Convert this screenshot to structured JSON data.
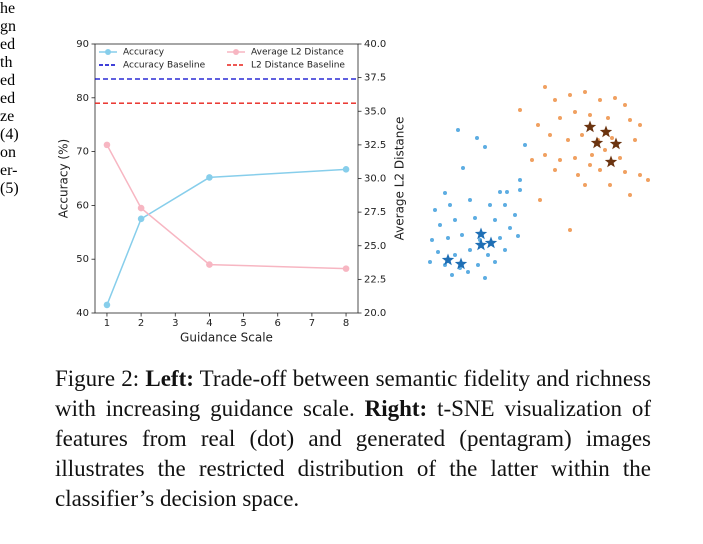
{
  "left_text": [
    "he",
    "gn",
    "ed",
    "th",
    "ed",
    "ed",
    "ze",
    "(4)",
    "on",
    "er-",
    "(5)"
  ],
  "chart_data": [
    {
      "type": "line",
      "x": [
        1,
        2,
        4,
        8
      ],
      "xlabel": "Guidance Scale",
      "ylabel": "Accuracy (%)",
      "y2label": "Average L2 Distance",
      "xlim": [
        0.65,
        8.35
      ],
      "xticks": [
        1,
        2,
        3,
        4,
        5,
        6,
        7,
        8
      ],
      "ylim": [
        40,
        90
      ],
      "yticks": [
        40,
        50,
        60,
        70,
        80,
        90
      ],
      "y2lim": [
        20,
        40
      ],
      "y2ticks": [
        {
          "value": 20,
          "label": "20.0"
        },
        {
          "value": 22.5,
          "label": "22.5"
        },
        {
          "value": 25,
          "label": "25.0"
        },
        {
          "value": 27.5,
          "label": "27.5"
        },
        {
          "value": 30,
          "label": "30.0"
        },
        {
          "value": 32.5,
          "label": "32.5"
        },
        {
          "value": 35,
          "label": "35.0"
        },
        {
          "value": 37.5,
          "label": "37.5"
        },
        {
          "value": 40,
          "label": "40.0"
        }
      ],
      "series": [
        {
          "name": "Accuracy",
          "color": "#87ceeb",
          "values": [
            41.5,
            57.5,
            65.2,
            66.7
          ]
        },
        {
          "name": "Average L2 Distance",
          "color": "#f7b6c2",
          "axis": "y2",
          "values": [
            32.5,
            27.8,
            23.6,
            23.3
          ]
        }
      ],
      "baselines": [
        {
          "name": "Accuracy Baseline",
          "color": "#0000cc",
          "value": 83.5
        },
        {
          "name": "L2 Distance Baseline",
          "color": "#e8201a",
          "axis": "y2",
          "value": 35.6
        }
      ]
    },
    {
      "type": "scatter",
      "xlim": [
        0,
        240
      ],
      "ylim": [
        0,
        220
      ],
      "series": [
        {
          "marker": "dot",
          "color": "#5dade2",
          "x": [
            38,
            57,
            65,
            43,
            25,
            80,
            87,
            100,
            15,
            30,
            50,
            70,
            85,
            95,
            20,
            35,
            55,
            75,
            90,
            12,
            28,
            42,
            60,
            80,
            98,
            18,
            35,
            50,
            68,
            85,
            25,
            40,
            58,
            75,
            32,
            48,
            65,
            10,
            100,
            105
          ],
          "y": [
            170,
            162,
            153,
            132,
            107,
            108,
            108,
            110,
            90,
            95,
            100,
            95,
            95,
            85,
            75,
            80,
            82,
            80,
            72,
            60,
            62,
            65,
            60,
            62,
            64,
            48,
            45,
            50,
            45,
            50,
            35,
            32,
            35,
            38,
            25,
            28,
            22,
            38,
            120,
            155
          ]
        },
        {
          "marker": "dot",
          "color": "#f0a060",
          "x": [
            125,
            100,
            118,
            135,
            150,
            165,
            180,
            195,
            205,
            140,
            155,
            170,
            188,
            210,
            220,
            130,
            148,
            162,
            178,
            192,
            215,
            125,
            140,
            155,
            172,
            200,
            228,
            112,
            135,
            158,
            180,
            205,
            220,
            165,
            190,
            210,
            120,
            150,
            170,
            185
          ],
          "y": [
            213,
            190,
            175,
            200,
            205,
            208,
            200,
            202,
            195,
            182,
            188,
            185,
            182,
            180,
            175,
            165,
            160,
            165,
            160,
            162,
            160,
            145,
            140,
            142,
            145,
            142,
            120,
            140,
            130,
            125,
            130,
            128,
            125,
            115,
            115,
            105,
            100,
            70,
            135,
            150
          ]
        },
        {
          "marker": "star",
          "color": "#1f6fb5",
          "x": [
            28,
            41,
            61,
            61,
            71
          ],
          "y": [
            40,
            36,
            66,
            55,
            57
          ]
        },
        {
          "marker": "star",
          "color": "#6b3410",
          "x": [
            170,
            186,
            196,
            177,
            191
          ],
          "y": [
            173,
            168,
            156,
            157,
            138
          ]
        }
      ]
    }
  ],
  "caption": [
    {
      "text": "Figure 2: ",
      "bold": false
    },
    {
      "text": "Left:",
      "bold": true
    },
    {
      "text": " Trade-off between semantic fidelity and richness with increasing guidance scale. ",
      "bold": false
    },
    {
      "text": "Right:",
      "bold": true
    },
    {
      "text": " t-SNE visualization of features from real (dot) and generated (pentagram) images illustrates the restricted distribution of the latter within the classifier’s decision space.",
      "bold": false
    }
  ]
}
